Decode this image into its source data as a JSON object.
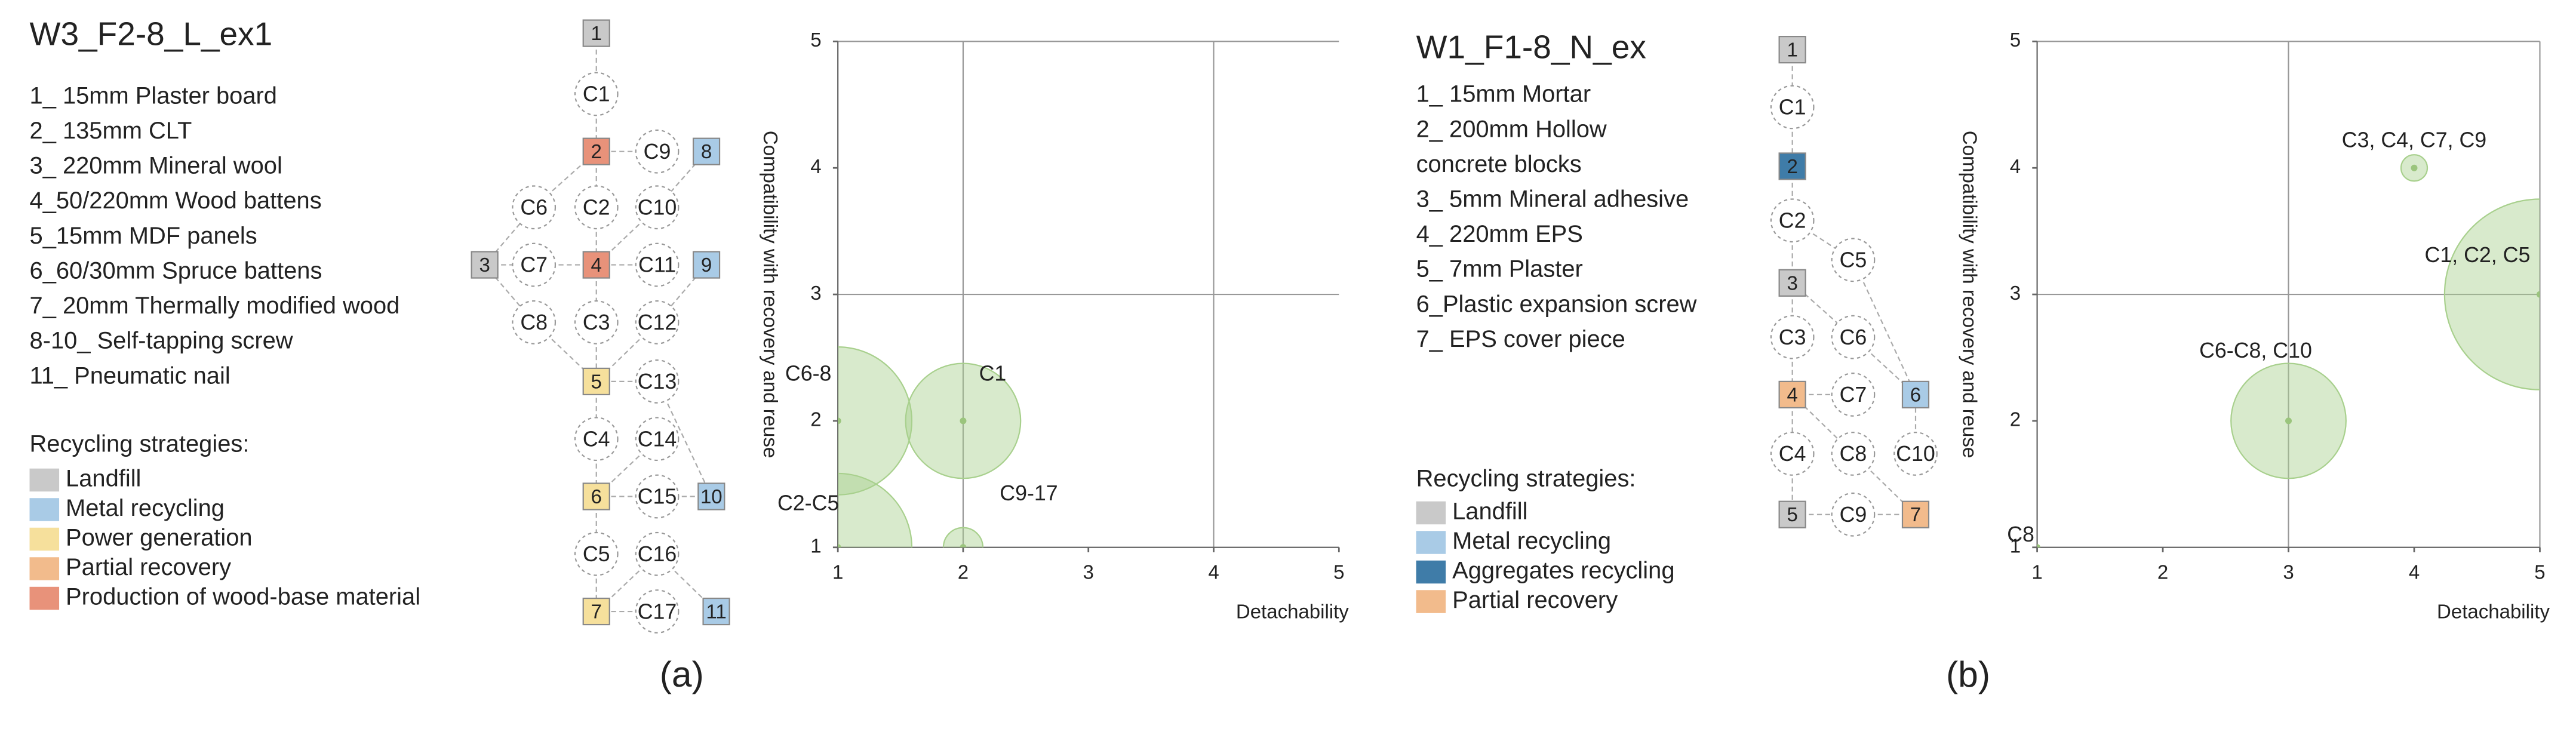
{
  "panels": [
    {
      "title": "W3_F2-8_L_ex1",
      "layers": [
        "1_ 15mm Plaster board",
        "2_ 135mm CLT",
        "3_ 220mm Mineral wool",
        "4_50/220mm Wood battens",
        "5_15mm MDF panels",
        "6_60/30mm Spruce battens",
        "7_ 20mm Thermally modified wood",
        "8-10_ Self-tapping screw",
        "11_ Pneumatic nail"
      ],
      "strategies_title": "Recycling strategies:",
      "strategies": [
        {
          "name": "Landfill",
          "color": "#c9c9c9"
        },
        {
          "name": "Metal recycling",
          "color": "#a9cbe6"
        },
        {
          "name": "Power generation",
          "color": "#f6e09c"
        },
        {
          "name": "Partial recovery",
          "color": "#f2bb8c"
        },
        {
          "name": "Production of wood-base material",
          "color": "#e8927a"
        }
      ],
      "nodes": [
        {
          "label": "1",
          "color": "#c9c9c9"
        },
        {
          "label": "2",
          "color": "#e8927a"
        },
        {
          "label": "8",
          "color": "#a9cbe6"
        },
        {
          "label": "3",
          "color": "#c9c9c9"
        },
        {
          "label": "4",
          "color": "#e8927a"
        },
        {
          "label": "9",
          "color": "#a9cbe6"
        },
        {
          "label": "5",
          "color": "#f6e09c"
        },
        {
          "label": "6",
          "color": "#f6e09c"
        },
        {
          "label": "10",
          "color": "#a9cbe6"
        },
        {
          "label": "7",
          "color": "#f6e09c"
        },
        {
          "label": "11",
          "color": "#a9cbe6"
        },
        {
          "label": "C1"
        },
        {
          "label": "C9"
        },
        {
          "label": "C6"
        },
        {
          "label": "C2"
        },
        {
          "label": "C10"
        },
        {
          "label": "C7"
        },
        {
          "label": "C11"
        },
        {
          "label": "C8"
        },
        {
          "label": "C3"
        },
        {
          "label": "C12"
        },
        {
          "label": "C13"
        },
        {
          "label": "C4"
        },
        {
          "label": "C14"
        },
        {
          "label": "C15"
        },
        {
          "label": "C5"
        },
        {
          "label": "C16"
        },
        {
          "label": "C17"
        }
      ],
      "caption": "(a)"
    },
    {
      "title": "W1_F1-8_N_ex",
      "layers": [
        "1_ 15mm Mortar",
        "2_ 200mm Hollow",
        "concrete blocks",
        "3_ 5mm Mineral adhesive",
        "4_ 220mm EPS",
        "5_ 7mm Plaster",
        "6_Plastic expansion screw",
        "7_ EPS cover piece"
      ],
      "strategies_title": "Recycling strategies:",
      "strategies": [
        {
          "name": "Landfill",
          "color": "#c9c9c9"
        },
        {
          "name": "Metal recycling",
          "color": "#a9cbe6"
        },
        {
          "name": "Aggregates recycling",
          "color": "#3f7ca8"
        },
        {
          "name": "Partial recovery",
          "color": "#f2bb8c"
        }
      ],
      "nodes": [
        {
          "label": "1",
          "color": "#c9c9c9"
        },
        {
          "label": "2",
          "color": "#3f7ca8"
        },
        {
          "label": "3",
          "color": "#c9c9c9"
        },
        {
          "label": "4",
          "color": "#f2bb8c"
        },
        {
          "label": "6",
          "color": "#a9cbe6"
        },
        {
          "label": "5",
          "color": "#c9c9c9"
        },
        {
          "label": "7",
          "color": "#f2bb8c"
        },
        {
          "label": "C1"
        },
        {
          "label": "C2"
        },
        {
          "label": "C5"
        },
        {
          "label": "C3"
        },
        {
          "label": "C6"
        },
        {
          "label": "C7"
        },
        {
          "label": "C4"
        },
        {
          "label": "C8"
        },
        {
          "label": "C10"
        },
        {
          "label": "C9"
        }
      ],
      "caption": "(b)"
    }
  ],
  "chart_data": [
    {
      "type": "bubble",
      "xlabel": "Detachability",
      "ylabel": "Compatibility with recovery and reuse",
      "xlim": [
        1,
        5
      ],
      "ylim": [
        1,
        5
      ],
      "xticks": [
        1,
        2,
        3,
        4,
        5
      ],
      "yticks": [
        1,
        2,
        3,
        4,
        5
      ],
      "gridx": [
        2,
        4
      ],
      "gridy": [
        3,
        5
      ],
      "color": "#a8d08d",
      "labels": [
        "C6-8",
        "C1",
        "C2-C5",
        "C9-17"
      ],
      "x": [
        1,
        2,
        1,
        2
      ],
      "y": [
        2,
        2,
        1,
        1
      ],
      "sizes": [
        45,
        35,
        45,
        12
      ]
    },
    {
      "type": "bubble",
      "xlabel": "Detachability",
      "ylabel": "Compatibility with recovery and reuse",
      "xlim": [
        1,
        5
      ],
      "ylim": [
        1,
        5
      ],
      "xticks": [
        1,
        2,
        3,
        4,
        5
      ],
      "yticks": [
        1,
        2,
        3,
        4,
        5
      ],
      "gridx": [
        3,
        5
      ],
      "gridy": [
        3,
        5
      ],
      "color": "#a8d08d",
      "labels": [
        "C3, C4, C7, C9",
        "C1, C2, C5",
        "C6-C8, C10",
        "C8"
      ],
      "x": [
        4,
        5,
        3,
        1
      ],
      "y": [
        4,
        3,
        2,
        1
      ],
      "sizes": [
        8,
        58,
        35,
        1
      ]
    }
  ]
}
